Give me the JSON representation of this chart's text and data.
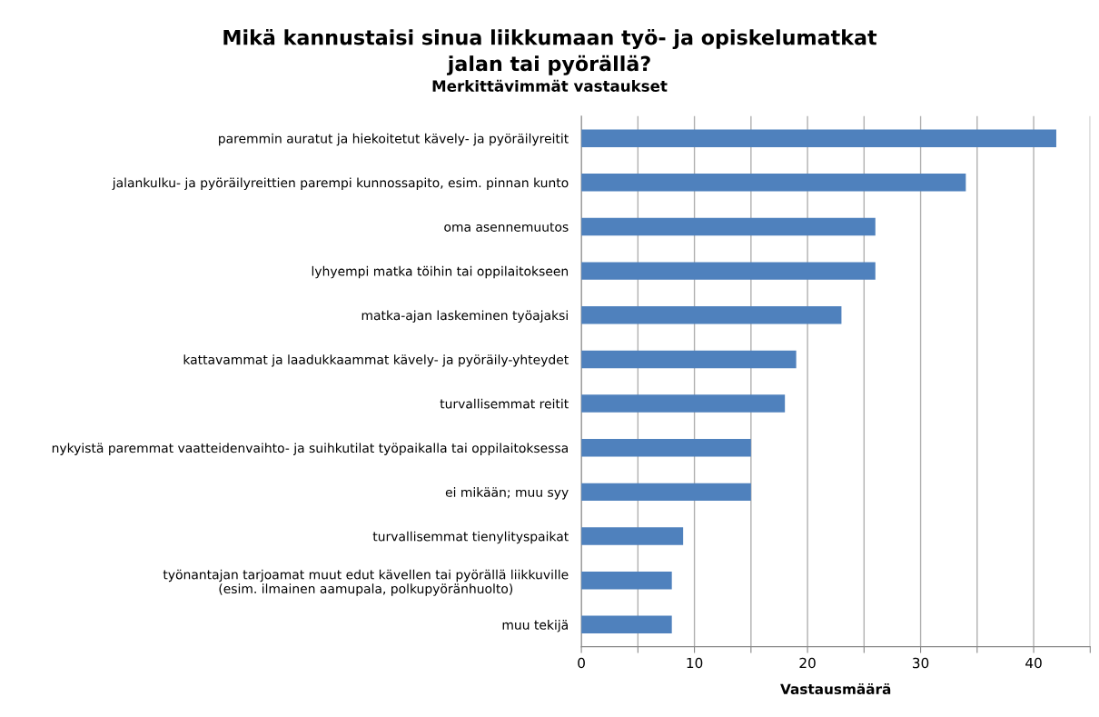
{
  "chart_data": {
    "type": "bar",
    "orientation": "horizontal",
    "title": "Mikä kannustaisi sinua liikkumaan työ- ja opiskelumatkat\njalan tai pyörällä?",
    "subtitle": "Merkittävimmät vastaukset",
    "xlabel": "Vastausmäärä",
    "categories": [
      "paremmin auratut ja hiekoitetut kävely- ja pyöräilyreitit",
      "jalankulku- ja pyöräilyreittien parempi kunnossapito, esim. pinnan kunto",
      "oma asennemuutos",
      "lyhyempi matka töihin tai oppilaitokseen",
      "matka-ajan laskeminen työajaksi",
      "kattavammat ja laadukkaammat kävely- ja pyöräily-yhteydet",
      "turvallisemmat reitit",
      "nykyistä paremmat vaatteidenvaihto- ja suihkutilat työpaikalla tai oppilaitoksessa",
      "ei mikään; muu syy",
      "turvallisemmat tienylityspaikat",
      "työnantajan tarjoamat muut edut kävellen tai pyörällä liikkuville\n(esim. ilmainen aamupala, polkupyöränhuolto)",
      "muu tekijä"
    ],
    "values": [
      42,
      34,
      26,
      26,
      23,
      19,
      18,
      15,
      15,
      9,
      8,
      8
    ],
    "color": "#4f81bd",
    "xlim": [
      0,
      45
    ],
    "xticks": [
      0,
      {
        "value": 5,
        "label": null
      },
      10,
      {
        "value": 15,
        "label": null
      },
      20,
      {
        "value": 25,
        "label": null
      },
      30,
      {
        "value": 35,
        "label": null
      },
      40,
      {
        "value": 45,
        "label": null
      }
    ],
    "grid": "x",
    "legend": false
  }
}
